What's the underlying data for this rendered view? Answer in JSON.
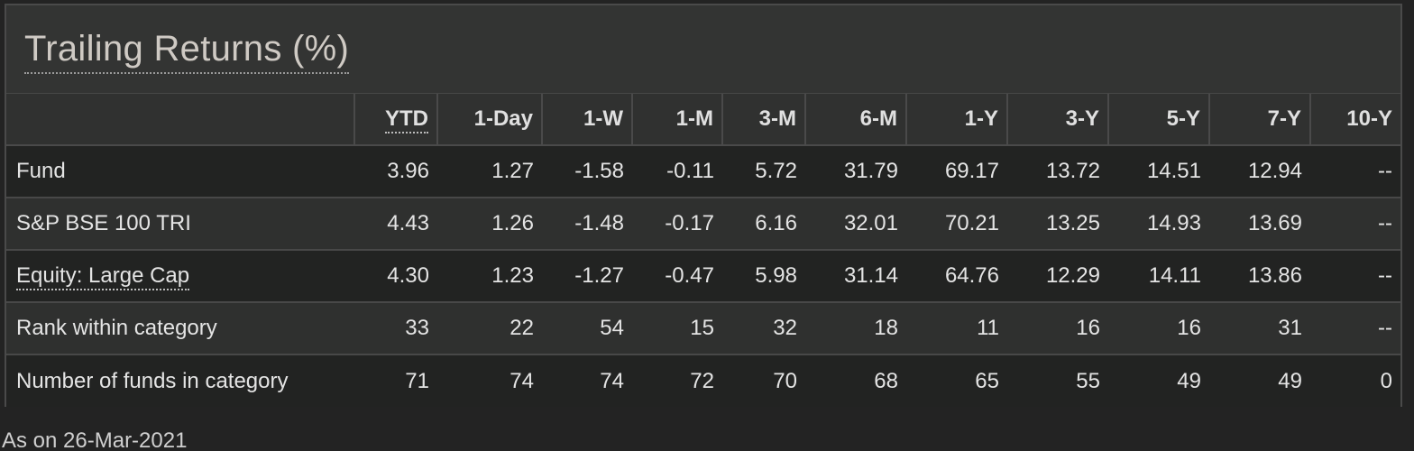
{
  "title": "Trailing Returns (%)",
  "columns": [
    "",
    "YTD",
    "1-Day",
    "1-W",
    "1-M",
    "3-M",
    "6-M",
    "1-Y",
    "3-Y",
    "5-Y",
    "7-Y",
    "10-Y"
  ],
  "rows": [
    {
      "label": "Fund",
      "values": [
        "3.96",
        "1.27",
        "-1.58",
        "-0.11",
        "5.72",
        "31.79",
        "69.17",
        "13.72",
        "14.51",
        "12.94",
        "--"
      ]
    },
    {
      "label": "S&P BSE 100 TRI",
      "values": [
        "4.43",
        "1.26",
        "-1.48",
        "-0.17",
        "6.16",
        "32.01",
        "70.21",
        "13.25",
        "14.93",
        "13.69",
        "--"
      ]
    },
    {
      "label": "Equity: Large Cap",
      "values": [
        "4.30",
        "1.23",
        "-1.27",
        "-0.47",
        "5.98",
        "31.14",
        "64.76",
        "12.29",
        "14.11",
        "13.86",
        "--"
      ]
    },
    {
      "label": "Rank within category",
      "values": [
        "33",
        "22",
        "54",
        "15",
        "32",
        "18",
        "11",
        "16",
        "16",
        "31",
        "--"
      ]
    },
    {
      "label": "Number of funds in category",
      "values": [
        "71",
        "74",
        "74",
        "72",
        "70",
        "68",
        "65",
        "55",
        "49",
        "49",
        "0"
      ]
    }
  ],
  "footnote": "As on 26-Mar-2021",
  "colors": {
    "background": "#232323",
    "panel": "#2d2e2d",
    "title": "#cfcac4",
    "row_dark": "#222322",
    "row_light": "#2f302f",
    "border": "#4a4a4a"
  }
}
